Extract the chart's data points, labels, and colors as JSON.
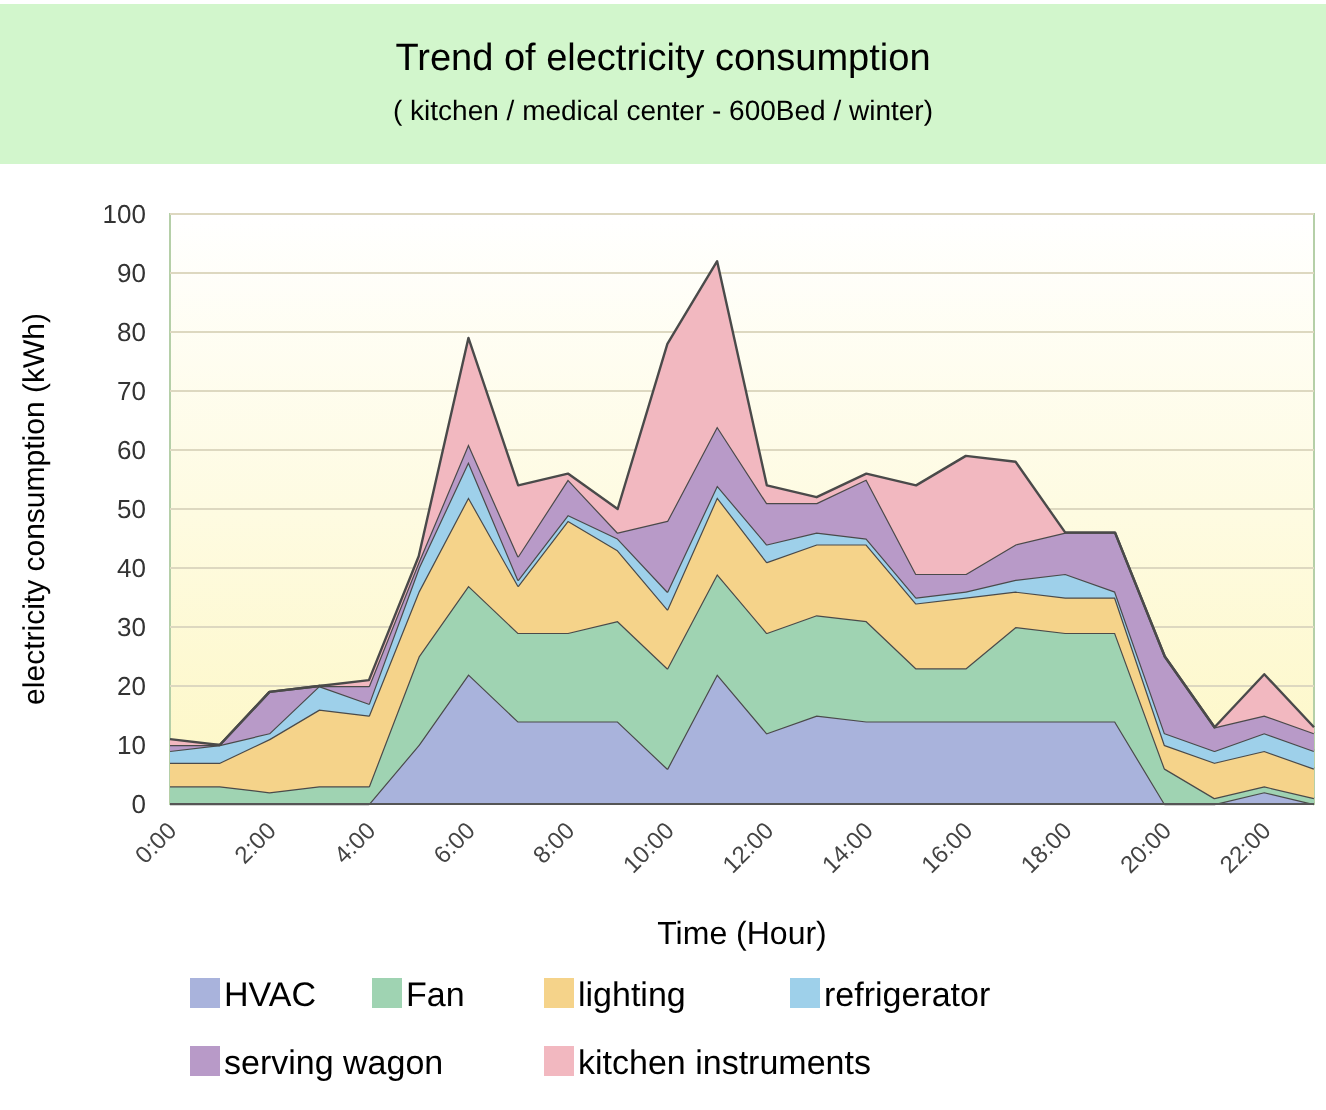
{
  "chart_data": {
    "type": "area",
    "stacked": true,
    "title": "Trend of electricity consumption",
    "subtitle": "( kitchen / medical center - 600Bed / winter)",
    "xlabel": "Time (Hour)",
    "ylabel": "electricity consumption (kWh)",
    "x": [
      0,
      1,
      2,
      3,
      4,
      5,
      6,
      7,
      8,
      9,
      10,
      11,
      12,
      13,
      14,
      15,
      16,
      17,
      18,
      19,
      20,
      21,
      22,
      23
    ],
    "xlim": [
      0,
      23
    ],
    "xticks": [
      {
        "value": 0,
        "label": "0:00"
      },
      {
        "value": 2,
        "label": "2:00"
      },
      {
        "value": 4,
        "label": "4:00"
      },
      {
        "value": 6,
        "label": "6:00"
      },
      {
        "value": 8,
        "label": "8:00"
      },
      {
        "value": 10,
        "label": "10:00"
      },
      {
        "value": 12,
        "label": "12:00"
      },
      {
        "value": 14,
        "label": "14:00"
      },
      {
        "value": 16,
        "label": "16:00"
      },
      {
        "value": 18,
        "label": "18:00"
      },
      {
        "value": 20,
        "label": "20:00"
      },
      {
        "value": 22,
        "label": "22:00"
      }
    ],
    "ylim": [
      0,
      100
    ],
    "yticks": [
      0,
      10,
      20,
      30,
      40,
      50,
      60,
      70,
      80,
      90,
      100
    ],
    "grid": "y",
    "legend": "bottom",
    "series": [
      {
        "name": "HVAC",
        "color": "#a9b3dc",
        "values": [
          0,
          0,
          0,
          0,
          0,
          10,
          22,
          14,
          14,
          14,
          6,
          22,
          12,
          15,
          14,
          14,
          14,
          14,
          14,
          14,
          0,
          0,
          2,
          0
        ]
      },
      {
        "name": "Fan",
        "color": "#9fd3b2",
        "values": [
          3,
          3,
          2,
          3,
          3,
          15,
          15,
          15,
          15,
          17,
          17,
          17,
          17,
          17,
          17,
          9,
          9,
          16,
          15,
          15,
          6,
          1,
          1,
          1
        ]
      },
      {
        "name": "lighting",
        "color": "#f5d38a",
        "values": [
          4,
          4,
          9,
          13,
          12,
          11,
          15,
          8,
          19,
          12,
          10,
          13,
          12,
          12,
          13,
          11,
          12,
          6,
          6,
          6,
          4,
          6,
          6,
          5
        ]
      },
      {
        "name": "refrigerator",
        "color": "#9ed0ea",
        "values": [
          2,
          3,
          1,
          4,
          2,
          4,
          6,
          1,
          1,
          2,
          3,
          2,
          3,
          2,
          1,
          1,
          1,
          2,
          4,
          1,
          2,
          2,
          3,
          3
        ]
      },
      {
        "name": "serving wagon",
        "color": "#b89ac8",
        "values": [
          1,
          0,
          7,
          0,
          3,
          1,
          3,
          4,
          6,
          1,
          12,
          10,
          7,
          5,
          10,
          4,
          3,
          6,
          7,
          10,
          13,
          4,
          3,
          3
        ]
      },
      {
        "name": "kitchen instruments",
        "color": "#f2b8c0",
        "values": [
          1,
          0,
          0,
          0,
          1,
          1,
          18,
          12,
          1,
          4,
          30,
          28,
          3,
          1,
          1,
          15,
          20,
          14,
          0,
          0,
          0,
          0,
          7,
          1
        ]
      }
    ]
  }
}
